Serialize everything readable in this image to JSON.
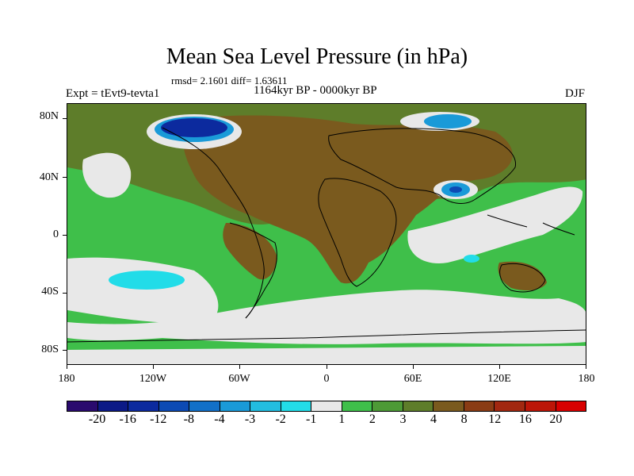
{
  "title": "Mean Sea Level Pressure (in hPa)",
  "stats": "rmsd= 2.1601  diff= 1.63611",
  "expt": "Expt = tEvt9-tevta1",
  "period": "1164kyr BP - 0000kyr BP",
  "season": "DJF",
  "map": {
    "lat_labels": [
      "80N",
      "40N",
      "0",
      "40S",
      "80S"
    ],
    "lon_labels": [
      "180",
      "120W",
      "60W",
      "0",
      "60E",
      "120E",
      "180"
    ],
    "colors": {
      "ocean_green": "#3fbf4a",
      "land_brown": "#7a5a1e",
      "olive": "#5e7d2a",
      "white_band": "#e8e8e8",
      "cyan": "#22dce8",
      "mid_blue": "#1a9ad8",
      "deep_blue": "#0c2a9e"
    }
  },
  "colorbar": {
    "labels": [
      "-20",
      "-16",
      "-12",
      "-8",
      "-4",
      "-3",
      "-2",
      "-1",
      "1",
      "2",
      "3",
      "4",
      "8",
      "12",
      "16",
      "20"
    ],
    "colors": [
      "#2a0a6e",
      "#0c1a86",
      "#0c2a9e",
      "#0c4ab4",
      "#1270c8",
      "#1a9ad8",
      "#22bde0",
      "#22dce8",
      "#e8e8e8",
      "#3fbf4a",
      "#4d9a36",
      "#5e7d2a",
      "#7a5a1e",
      "#8a3c14",
      "#a22810",
      "#bc1608",
      "#d80000"
    ]
  }
}
